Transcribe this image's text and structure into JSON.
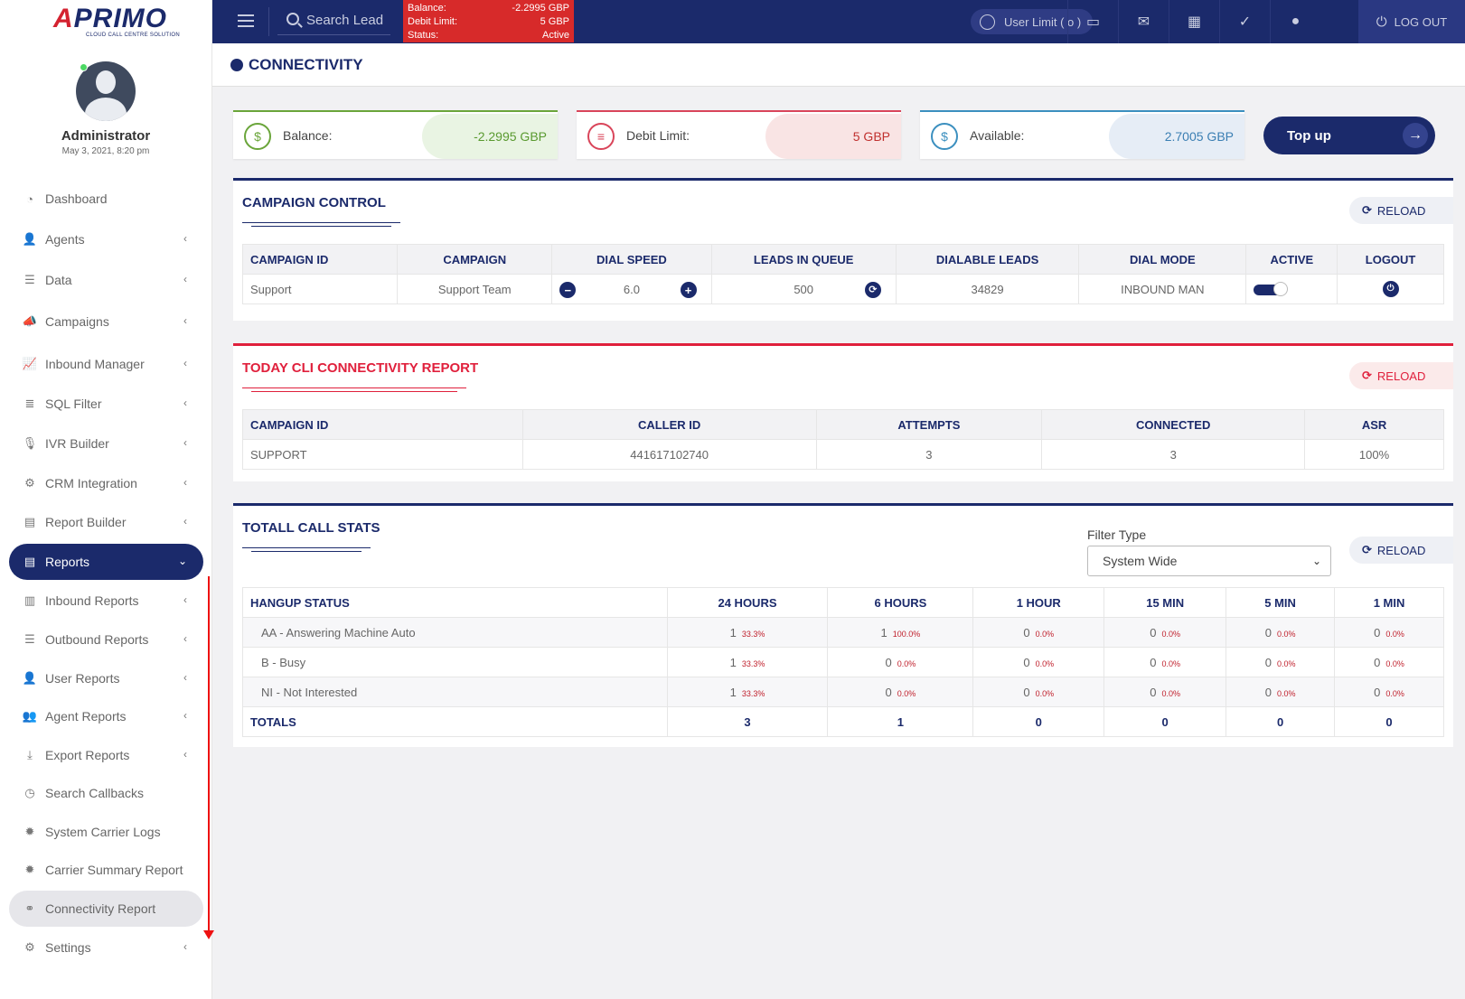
{
  "brand": {
    "logo_text_a": "A",
    "logo_text_rest": "PRIMO",
    "tagline": "CLOUD CALL CENTRE SOLUTION"
  },
  "profile": {
    "name": "Administrator",
    "date": "May 3, 2021, 8:20 pm"
  },
  "sidebar": {
    "items": [
      {
        "label": "Dashboard",
        "icon": "dashboard-icon",
        "glyph": "◔"
      },
      {
        "label": "Agents",
        "icon": "agents-icon",
        "glyph": "👤"
      },
      {
        "label": "Data",
        "icon": "data-icon",
        "glyph": "☰"
      },
      {
        "label": "Campaigns",
        "icon": "megaphone-icon",
        "glyph": "📣"
      },
      {
        "label": "Inbound Manager",
        "icon": "chart-icon",
        "glyph": "📈"
      },
      {
        "label": "SQL Filter",
        "icon": "database-icon",
        "glyph": "≣"
      },
      {
        "label": "IVR Builder",
        "icon": "microphone-icon",
        "glyph": "🎙"
      },
      {
        "label": "CRM Integration",
        "icon": "gear-icon",
        "glyph": "⚙"
      },
      {
        "label": "Report Builder",
        "icon": "document-icon",
        "glyph": "▤"
      },
      {
        "label": "Reports",
        "icon": "reports-icon",
        "glyph": "▤"
      },
      {
        "label": "Inbound Reports",
        "icon": "bar-chart-icon",
        "glyph": "▥"
      },
      {
        "label": "Outbound Reports",
        "icon": "list-icon",
        "glyph": "☰"
      },
      {
        "label": "User Reports",
        "icon": "user-icon",
        "glyph": "👤"
      },
      {
        "label": "Agent Reports",
        "icon": "users-icon",
        "glyph": "👥"
      },
      {
        "label": "Export Reports",
        "icon": "download-icon",
        "glyph": "⤓"
      },
      {
        "label": "Search Callbacks",
        "icon": "clock-icon",
        "glyph": "◷"
      },
      {
        "label": "System Carrier Logs",
        "icon": "cog-icon",
        "glyph": "✹"
      },
      {
        "label": "Carrier Summary Report",
        "icon": "cog-icon",
        "glyph": "✹"
      },
      {
        "label": "Connectivity Report",
        "icon": "link-icon",
        "glyph": "⚭"
      },
      {
        "label": "Settings",
        "icon": "gear-icon",
        "glyph": "⚙"
      }
    ]
  },
  "topbar": {
    "search_label": "Search Lead",
    "balance_label": "Balance:",
    "balance_value": "-2.2995 GBP",
    "debit_label": "Debit Limit:",
    "debit_value": "5 GBP",
    "status_label": "Status:",
    "status_value": "Active",
    "user_limit": "User Limit ( o )",
    "logout": "LOG OUT"
  },
  "page": {
    "title": "CONNECTIVITY"
  },
  "stats": {
    "balance_label": "Balance:",
    "balance_value": "-2.2995 GBP",
    "debit_label": "Debit Limit:",
    "debit_value": "5 GBP",
    "available_label": "Available:",
    "available_value": "2.7005 GBP",
    "topup": "Top up"
  },
  "campaign_control": {
    "title": "CAMPAIGN CONTROL",
    "reload": "RELOAD",
    "headers": [
      "CAMPAIGN ID",
      "CAMPAIGN",
      "DIAL SPEED",
      "LEADS IN QUEUE",
      "DIALABLE LEADS",
      "DIAL MODE",
      "ACTIVE",
      "LOGOUT"
    ],
    "row": {
      "campaign_id": "Support",
      "campaign": "Support Team",
      "dial_speed": "6.0",
      "leads_in_queue": "500",
      "dialable_leads": "34829",
      "dial_mode": "INBOUND MAN"
    }
  },
  "cli_report": {
    "title": "TODAY CLI CONNECTIVITY REPORT",
    "reload": "RELOAD",
    "headers": [
      "CAMPAIGN ID",
      "CALLER ID",
      "ATTEMPTS",
      "CONNECTED",
      "ASR"
    ],
    "row": {
      "campaign_id": "SUPPORT",
      "caller_id": "441617102740",
      "attempts": "3",
      "connected": "3",
      "asr": "100%"
    }
  },
  "call_stats": {
    "title": "TOTALL CALL STATS",
    "reload": "RELOAD",
    "filter_label": "Filter Type",
    "filter_value": "System Wide",
    "headers": [
      "HANGUP STATUS",
      "24 HOURS",
      "6 HOURS",
      "1 HOUR",
      "15 MIN",
      "5 MIN",
      "1 MIN"
    ],
    "rows": [
      {
        "status": "AA - Answering Machine Auto",
        "cells": [
          [
            "1",
            "33.3%"
          ],
          [
            "1",
            "100.0%"
          ],
          [
            "0",
            "0.0%"
          ],
          [
            "0",
            "0.0%"
          ],
          [
            "0",
            "0.0%"
          ],
          [
            "0",
            "0.0%"
          ]
        ]
      },
      {
        "status": "B - Busy",
        "cells": [
          [
            "1",
            "33.3%"
          ],
          [
            "0",
            "0.0%"
          ],
          [
            "0",
            "0.0%"
          ],
          [
            "0",
            "0.0%"
          ],
          [
            "0",
            "0.0%"
          ],
          [
            "0",
            "0.0%"
          ]
        ]
      },
      {
        "status": "NI - Not Interested",
        "cells": [
          [
            "1",
            "33.3%"
          ],
          [
            "0",
            "0.0%"
          ],
          [
            "0",
            "0.0%"
          ],
          [
            "0",
            "0.0%"
          ],
          [
            "0",
            "0.0%"
          ],
          [
            "0",
            "0.0%"
          ]
        ]
      }
    ],
    "totals_label": "TOTALS",
    "totals": [
      "3",
      "1",
      "0",
      "0",
      "0",
      "0"
    ]
  }
}
